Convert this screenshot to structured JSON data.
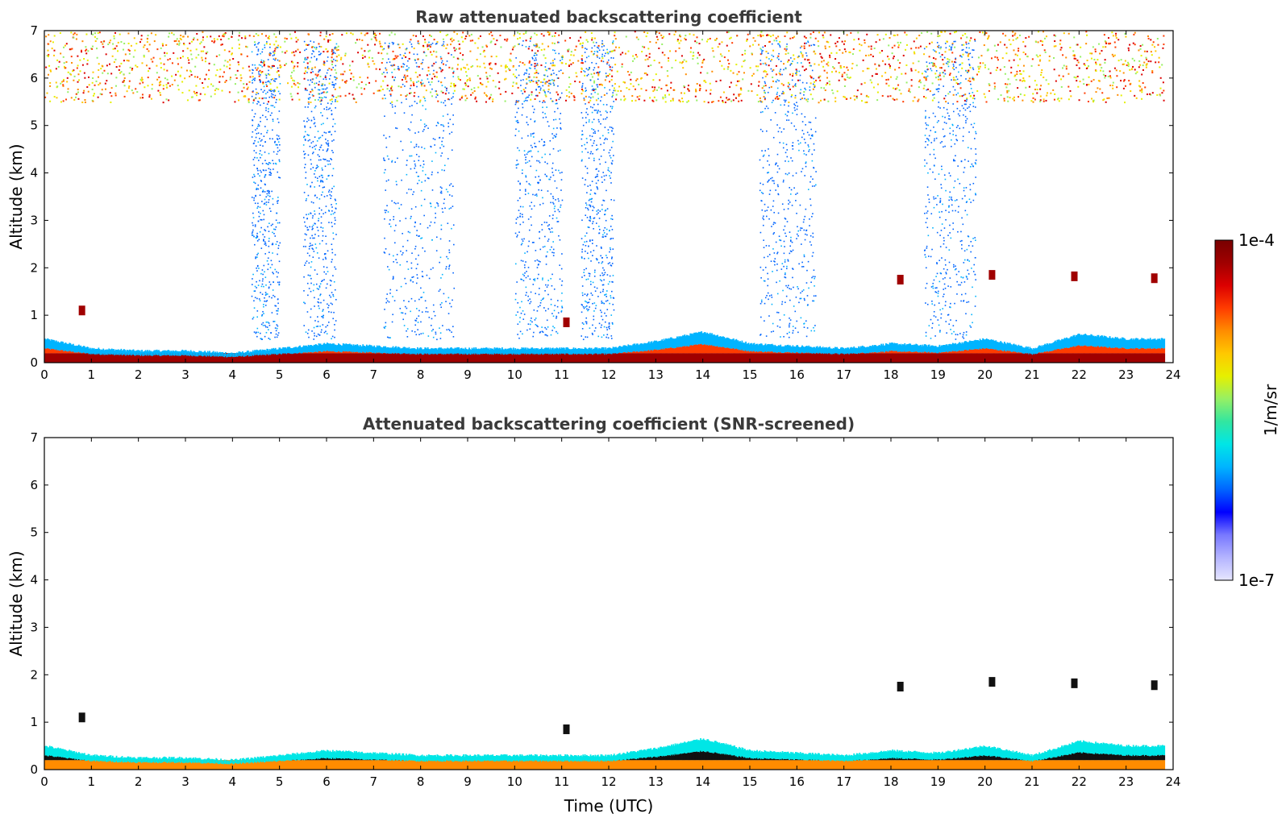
{
  "chart_data": [
    {
      "type": "heatmap",
      "title": "Raw attenuated backscattering coefficient",
      "xlabel": "",
      "ylabel": "Altitude (km)",
      "xlim": [
        0,
        24
      ],
      "ylim": [
        0,
        7
      ],
      "xticks": [
        "0",
        "1",
        "2",
        "3",
        "4",
        "5",
        "6",
        "7",
        "8",
        "9",
        "10",
        "11",
        "12",
        "13",
        "14",
        "15",
        "16",
        "17",
        "18",
        "19",
        "20",
        "21",
        "22",
        "23",
        "24"
      ],
      "yticks": [
        "0",
        "1",
        "2",
        "3",
        "4",
        "5",
        "6",
        "7"
      ],
      "data_end_hour": 23.8,
      "features": {
        "surface_layer_top_km": [
          0.5,
          0.3,
          0.25,
          0.25,
          0.2,
          0.3,
          0.4,
          0.35,
          0.3,
          0.3,
          0.3,
          0.3,
          0.3,
          0.45,
          0.65,
          0.4,
          0.35,
          0.3,
          0.4,
          0.35,
          0.5,
          0.3,
          0.6,
          0.5
        ],
        "noisy_upper_region_km": [
          5.5,
          7.0
        ],
        "elevated_cloud_spots": [
          {
            "time": 0.8,
            "alt_km": 1.1
          },
          {
            "time": 11.1,
            "alt_km": 0.85
          },
          {
            "time": 18.2,
            "alt_km": 1.75
          },
          {
            "time": 20.15,
            "alt_km": 1.85
          },
          {
            "time": 21.9,
            "alt_km": 1.82
          },
          {
            "time": 23.6,
            "alt_km": 1.78
          }
        ]
      }
    },
    {
      "type": "heatmap",
      "title": "Attenuated backscattering coefficient (SNR-screened)",
      "xlabel": "Time (UTC)",
      "ylabel": "Altitude (km)",
      "xlim": [
        0,
        24
      ],
      "ylim": [
        0,
        7
      ],
      "xticks": [
        "0",
        "1",
        "2",
        "3",
        "4",
        "5",
        "6",
        "7",
        "8",
        "9",
        "10",
        "11",
        "12",
        "13",
        "14",
        "15",
        "16",
        "17",
        "18",
        "19",
        "20",
        "21",
        "22",
        "23",
        "24"
      ],
      "yticks": [
        "0",
        "1",
        "2",
        "3",
        "4",
        "5",
        "6",
        "7"
      ],
      "data_end_hour": 23.8,
      "features": {
        "surface_layer_top_km": [
          0.5,
          0.3,
          0.25,
          0.25,
          0.2,
          0.3,
          0.4,
          0.35,
          0.3,
          0.3,
          0.3,
          0.3,
          0.3,
          0.45,
          0.65,
          0.4,
          0.35,
          0.3,
          0.4,
          0.35,
          0.5,
          0.3,
          0.6,
          0.5
        ],
        "elevated_cloud_spots": [
          {
            "time": 0.8,
            "alt_km": 1.1
          },
          {
            "time": 11.1,
            "alt_km": 0.85
          },
          {
            "time": 18.2,
            "alt_km": 1.75
          },
          {
            "time": 20.15,
            "alt_km": 1.85
          },
          {
            "time": 21.9,
            "alt_km": 1.82
          },
          {
            "time": 23.6,
            "alt_km": 1.78
          }
        ]
      }
    }
  ],
  "colorbar": {
    "label": "1/m/sr",
    "max_label": "1e-4",
    "min_label": "1e-7",
    "scale": "log",
    "colors": [
      "#e6e6ff",
      "#b4b4ff",
      "#7878ff",
      "#0000ff",
      "#0064ff",
      "#00b4ff",
      "#00e6e6",
      "#32e6a0",
      "#96f064",
      "#e6f000",
      "#ffc800",
      "#ff8c00",
      "#ff3c00",
      "#dc0000",
      "#a00000",
      "#780000"
    ]
  }
}
